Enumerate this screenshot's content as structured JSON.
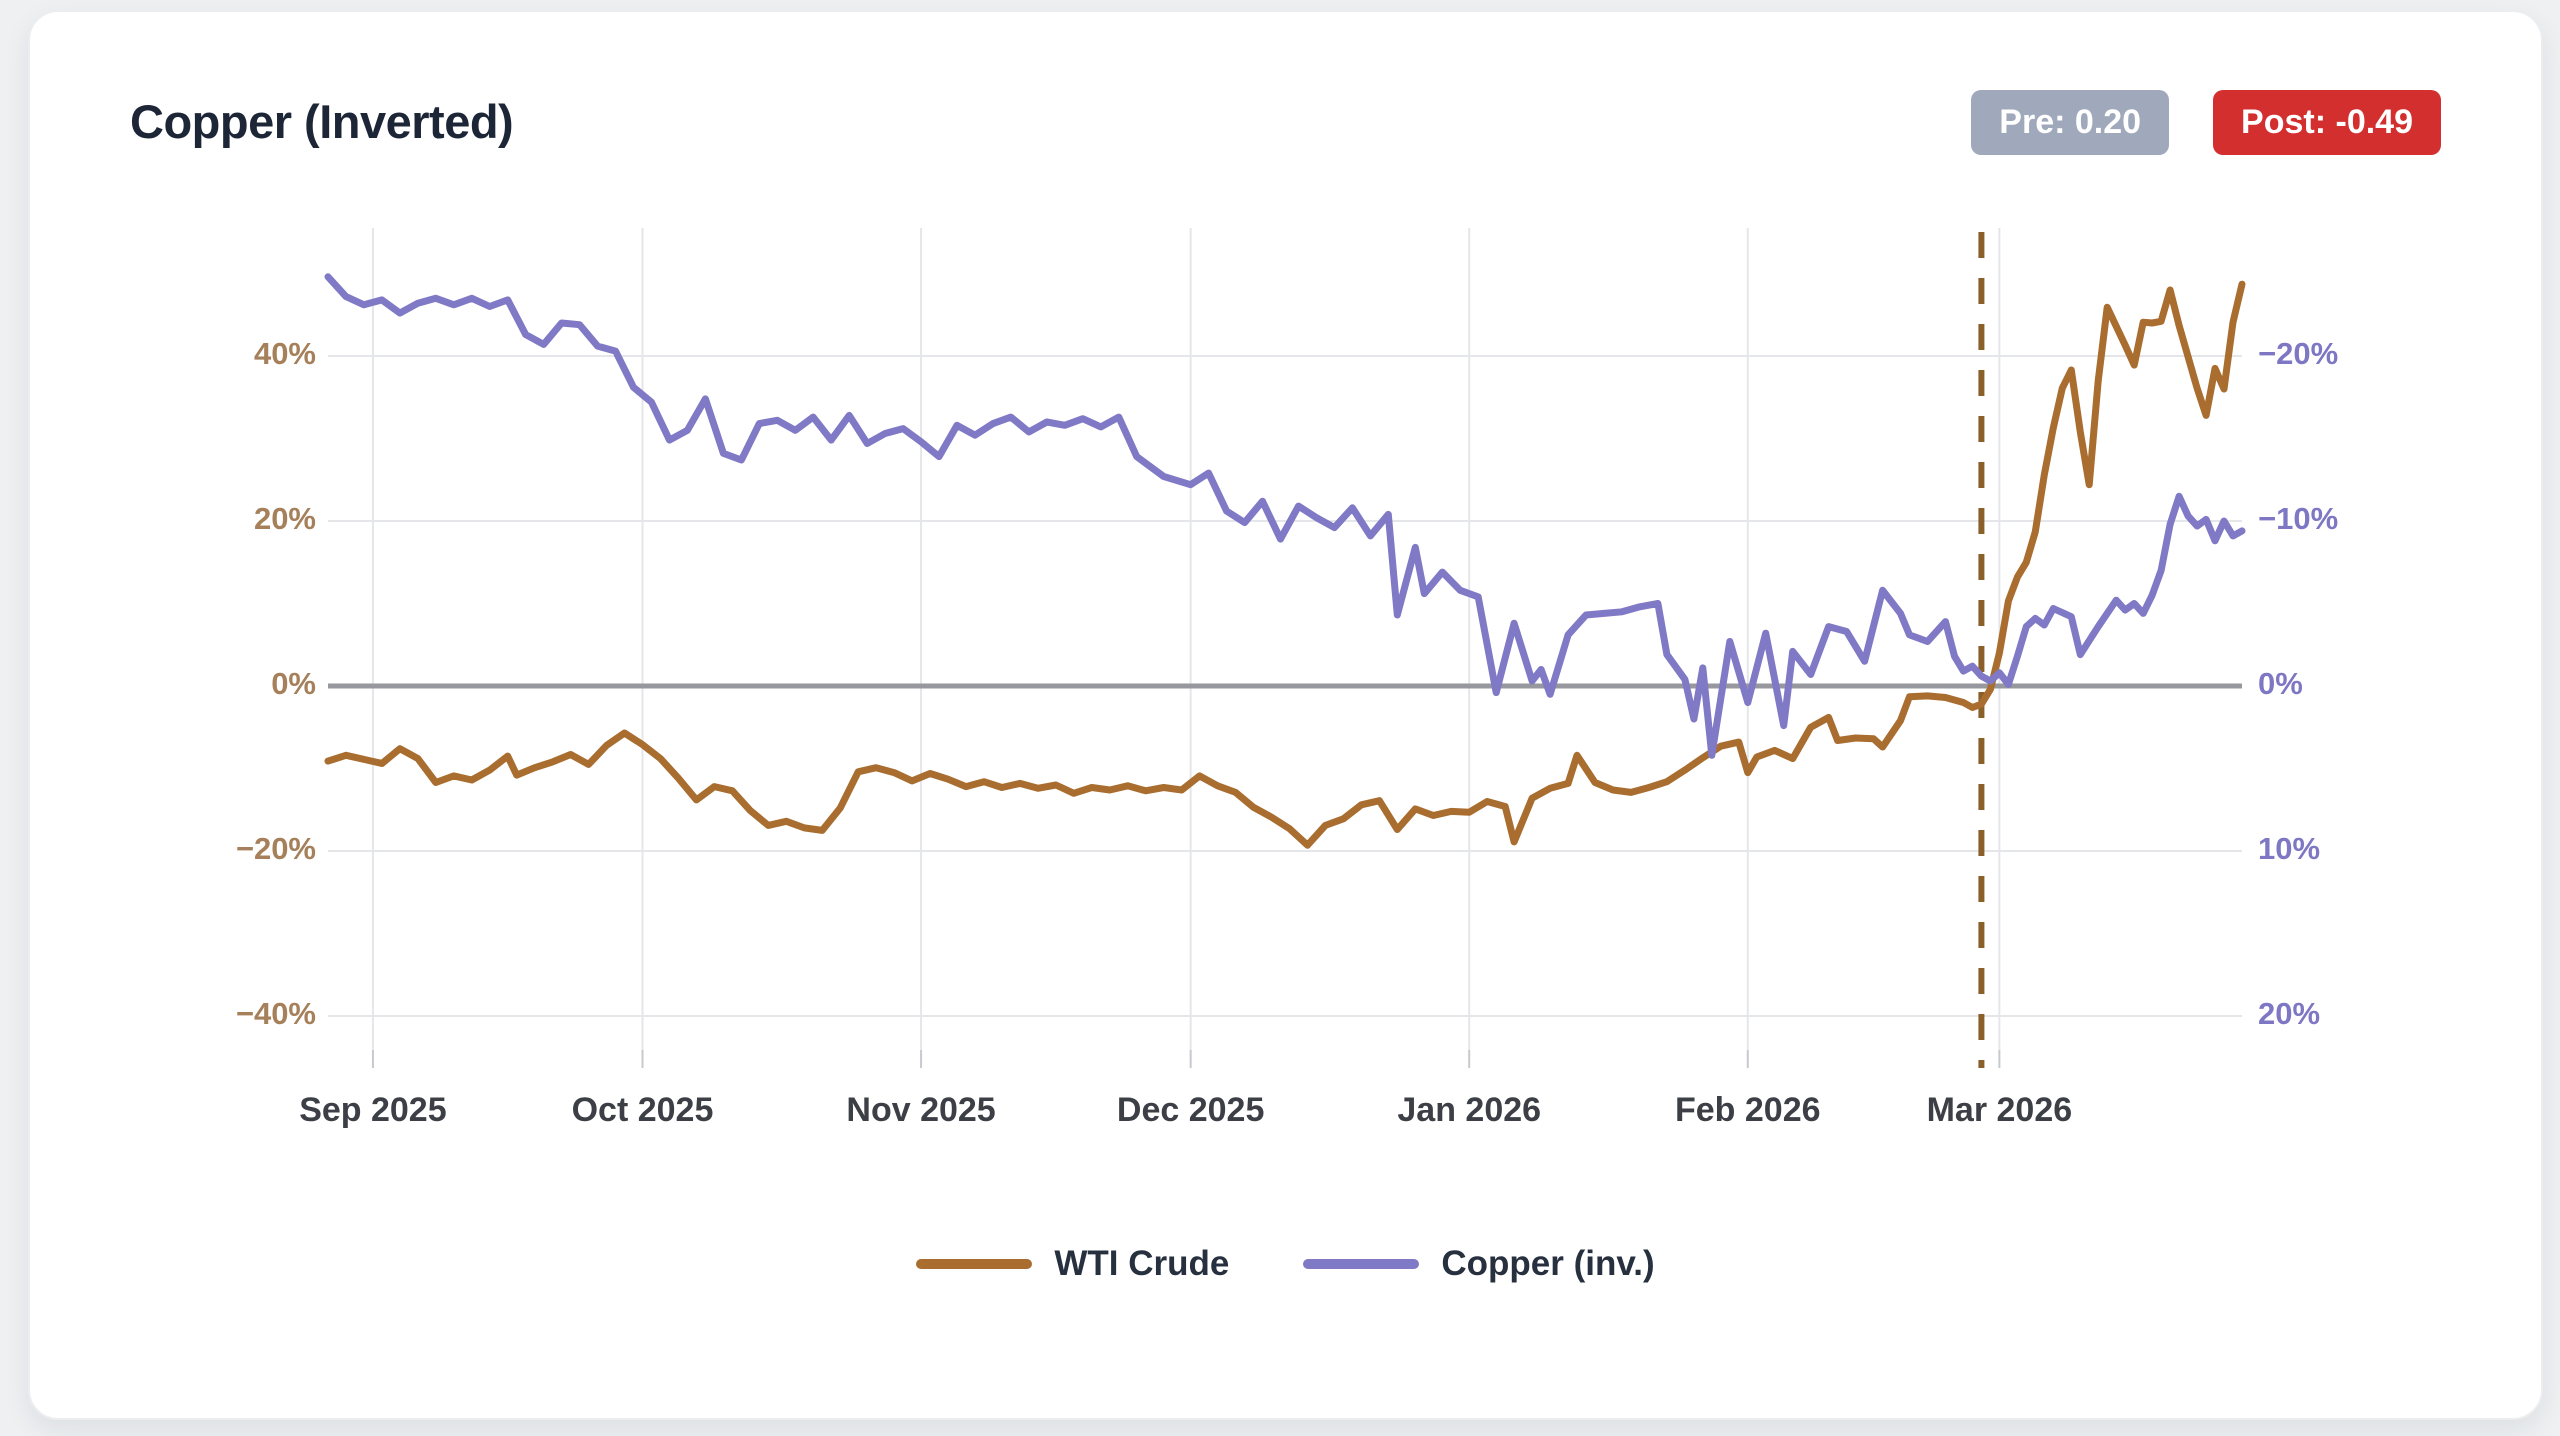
{
  "page": {
    "background": "#eef0f2"
  },
  "header": {
    "title": "Copper (Inverted)",
    "badges": [
      {
        "id": "pre",
        "label": "Pre: 0.20",
        "color": "#9fa9bb"
      },
      {
        "id": "post",
        "label": "Post: -0.49",
        "color": "#d42f2f"
      }
    ]
  },
  "legend": {
    "items": [
      {
        "label": "WTI Crude",
        "color": "#a86d2f"
      },
      {
        "label": "Copper (inv.)",
        "color": "#8079c5"
      }
    ]
  },
  "chart_data": {
    "type": "line",
    "title": "Copper (Inverted)",
    "grid": true,
    "legend_position": "bottom",
    "x_axis": {
      "type": "time",
      "start": "2025-08-27",
      "end": "2026-03-28",
      "tick_dates": [
        "2025-09-01",
        "2025-10-01",
        "2025-11-01",
        "2025-12-01",
        "2026-01-01",
        "2026-02-01",
        "2026-03-01"
      ],
      "tick_labels": [
        "Sep 2025",
        "Oct 2025",
        "Nov 2025",
        "Dec 2025",
        "Jan 2026",
        "Feb 2026",
        "Mar 2026"
      ],
      "label_color": "#3c4046"
    },
    "left_axis": {
      "title": "WTI Crude % change",
      "tick_values": [
        40,
        20,
        0,
        -20,
        -40
      ],
      "tick_labels": [
        "40%",
        "20%",
        "0%",
        "−20%",
        "−40%"
      ],
      "label_color": "#a5805a",
      "lim": [
        -44,
        55
      ]
    },
    "right_axis": {
      "title": "Copper % change (inverted)",
      "inverted": true,
      "tick_values": [
        -20,
        -10,
        0,
        10,
        20
      ],
      "tick_labels": [
        "−20%",
        "−10%",
        "0%",
        "10%",
        "20%"
      ],
      "label_color": "#7d77c4",
      "lim": [
        27.5,
        -22.2
      ]
    },
    "zero_line_color": "#97989d",
    "gridline_color": "#e5e6ea",
    "event_line": {
      "date": "2026-02-27",
      "style": "dashed",
      "color": "#8a5f2a"
    },
    "series": [
      {
        "name": "WTI Crude",
        "axis": "left",
        "color": "#a86d2f",
        "points": [
          [
            "2025-08-27",
            -9.1
          ],
          [
            "2025-08-29",
            -8.4
          ],
          [
            "2025-08-31",
            -8.9
          ],
          [
            "2025-09-02",
            -9.4
          ],
          [
            "2025-09-04",
            -7.6
          ],
          [
            "2025-09-06",
            -8.8
          ],
          [
            "2025-09-08",
            -11.7
          ],
          [
            "2025-09-10",
            -10.9
          ],
          [
            "2025-09-12",
            -11.4
          ],
          [
            "2025-09-14",
            -10.2
          ],
          [
            "2025-09-16",
            -8.5
          ],
          [
            "2025-09-17",
            -10.8
          ],
          [
            "2025-09-19",
            -9.9
          ],
          [
            "2025-09-21",
            -9.2
          ],
          [
            "2025-09-23",
            -8.3
          ],
          [
            "2025-09-25",
            -9.5
          ],
          [
            "2025-09-27",
            -7.2
          ],
          [
            "2025-09-29",
            -5.7
          ],
          [
            "2025-10-01",
            -7.1
          ],
          [
            "2025-10-03",
            -8.8
          ],
          [
            "2025-10-05",
            -11.2
          ],
          [
            "2025-10-07",
            -13.8
          ],
          [
            "2025-10-09",
            -12.2
          ],
          [
            "2025-10-11",
            -12.7
          ],
          [
            "2025-10-13",
            -15.1
          ],
          [
            "2025-10-15",
            -16.9
          ],
          [
            "2025-10-17",
            -16.4
          ],
          [
            "2025-10-19",
            -17.2
          ],
          [
            "2025-10-21",
            -17.5
          ],
          [
            "2025-10-23",
            -14.8
          ],
          [
            "2025-10-25",
            -10.4
          ],
          [
            "2025-10-27",
            -9.9
          ],
          [
            "2025-10-29",
            -10.5
          ],
          [
            "2025-10-31",
            -11.5
          ],
          [
            "2025-11-02",
            -10.6
          ],
          [
            "2025-11-04",
            -11.3
          ],
          [
            "2025-11-06",
            -12.2
          ],
          [
            "2025-11-08",
            -11.6
          ],
          [
            "2025-11-10",
            -12.3
          ],
          [
            "2025-11-12",
            -11.8
          ],
          [
            "2025-11-14",
            -12.4
          ],
          [
            "2025-11-16",
            -12.0
          ],
          [
            "2025-11-18",
            -13.0
          ],
          [
            "2025-11-20",
            -12.3
          ],
          [
            "2025-11-22",
            -12.6
          ],
          [
            "2025-11-24",
            -12.1
          ],
          [
            "2025-11-26",
            -12.7
          ],
          [
            "2025-11-28",
            -12.3
          ],
          [
            "2025-11-30",
            -12.6
          ],
          [
            "2025-12-02",
            -10.9
          ],
          [
            "2025-12-04",
            -12.1
          ],
          [
            "2025-12-06",
            -12.9
          ],
          [
            "2025-12-08",
            -14.7
          ],
          [
            "2025-12-10",
            -15.9
          ],
          [
            "2025-12-12",
            -17.3
          ],
          [
            "2025-12-14",
            -19.3
          ],
          [
            "2025-12-16",
            -16.9
          ],
          [
            "2025-12-18",
            -16.1
          ],
          [
            "2025-12-20",
            -14.4
          ],
          [
            "2025-12-22",
            -13.9
          ],
          [
            "2025-12-24",
            -17.4
          ],
          [
            "2025-12-26",
            -14.9
          ],
          [
            "2025-12-28",
            -15.7
          ],
          [
            "2025-12-30",
            -15.2
          ],
          [
            "2026-01-01",
            -15.3
          ],
          [
            "2026-01-03",
            -14.0
          ],
          [
            "2026-01-05",
            -14.6
          ],
          [
            "2026-01-06",
            -18.9
          ],
          [
            "2026-01-08",
            -13.6
          ],
          [
            "2026-01-10",
            -12.4
          ],
          [
            "2026-01-12",
            -11.8
          ],
          [
            "2026-01-13",
            -8.4
          ],
          [
            "2026-01-15",
            -11.7
          ],
          [
            "2026-01-17",
            -12.6
          ],
          [
            "2026-01-19",
            -12.9
          ],
          [
            "2026-01-21",
            -12.3
          ],
          [
            "2026-01-23",
            -11.6
          ],
          [
            "2026-01-25",
            -10.2
          ],
          [
            "2026-01-27",
            -8.7
          ],
          [
            "2026-01-29",
            -7.3
          ],
          [
            "2026-01-31",
            -6.8
          ],
          [
            "2026-02-01",
            -10.5
          ],
          [
            "2026-02-02",
            -8.6
          ],
          [
            "2026-02-04",
            -7.8
          ],
          [
            "2026-02-06",
            -8.8
          ],
          [
            "2026-02-08",
            -5.0
          ],
          [
            "2026-02-10",
            -3.8
          ],
          [
            "2026-02-11",
            -6.6
          ],
          [
            "2026-02-13",
            -6.3
          ],
          [
            "2026-02-15",
            -6.4
          ],
          [
            "2026-02-16",
            -7.4
          ],
          [
            "2026-02-18",
            -4.2
          ],
          [
            "2026-02-19",
            -1.3
          ],
          [
            "2026-02-21",
            -1.2
          ],
          [
            "2026-02-23",
            -1.4
          ],
          [
            "2026-02-25",
            -2.0
          ],
          [
            "2026-02-26",
            -2.6
          ],
          [
            "2026-02-27",
            -2.2
          ],
          [
            "2026-02-28",
            -0.4
          ],
          [
            "2026-03-01",
            4.0
          ],
          [
            "2026-03-02",
            10.3
          ],
          [
            "2026-03-03",
            13.2
          ],
          [
            "2026-03-04",
            15.0
          ],
          [
            "2026-03-05",
            18.7
          ],
          [
            "2026-03-06",
            25.6
          ],
          [
            "2026-03-07",
            31.3
          ],
          [
            "2026-03-08",
            36.1
          ],
          [
            "2026-03-09",
            38.3
          ],
          [
            "2026-03-10",
            30.8
          ],
          [
            "2026-03-11",
            24.4
          ],
          [
            "2026-03-12",
            37.0
          ],
          [
            "2026-03-13",
            45.9
          ],
          [
            "2026-03-15",
            41.3
          ],
          [
            "2026-03-16",
            38.9
          ],
          [
            "2026-03-17",
            44.1
          ],
          [
            "2026-03-18",
            44.0
          ],
          [
            "2026-03-19",
            44.2
          ],
          [
            "2026-03-20",
            48.0
          ],
          [
            "2026-03-21",
            43.7
          ],
          [
            "2026-03-23",
            36.1
          ],
          [
            "2026-03-24",
            32.8
          ],
          [
            "2026-03-25",
            38.5
          ],
          [
            "2026-03-26",
            36.0
          ],
          [
            "2026-03-27",
            44.1
          ],
          [
            "2026-03-28",
            48.7
          ]
        ]
      },
      {
        "name": "Copper (inv.)",
        "axis": "right",
        "color": "#8079c5",
        "points": [
          [
            "2025-08-27",
            -24.8
          ],
          [
            "2025-08-29",
            -23.6
          ],
          [
            "2025-08-31",
            -23.1
          ],
          [
            "2025-09-02",
            -23.4
          ],
          [
            "2025-09-04",
            -22.6
          ],
          [
            "2025-09-06",
            -23.2
          ],
          [
            "2025-09-08",
            -23.5
          ],
          [
            "2025-09-10",
            -23.1
          ],
          [
            "2025-09-12",
            -23.5
          ],
          [
            "2025-09-14",
            -23.0
          ],
          [
            "2025-09-16",
            -23.4
          ],
          [
            "2025-09-18",
            -21.3
          ],
          [
            "2025-09-20",
            -20.7
          ],
          [
            "2025-09-22",
            -22.0
          ],
          [
            "2025-09-24",
            -21.9
          ],
          [
            "2025-09-26",
            -20.6
          ],
          [
            "2025-09-28",
            -20.3
          ],
          [
            "2025-09-30",
            -18.1
          ],
          [
            "2025-10-02",
            -17.2
          ],
          [
            "2025-10-04",
            -14.9
          ],
          [
            "2025-10-06",
            -15.5
          ],
          [
            "2025-10-08",
            -17.4
          ],
          [
            "2025-10-10",
            -14.1
          ],
          [
            "2025-10-12",
            -13.7
          ],
          [
            "2025-10-14",
            -15.9
          ],
          [
            "2025-10-16",
            -16.1
          ],
          [
            "2025-10-18",
            -15.5
          ],
          [
            "2025-10-20",
            -16.3
          ],
          [
            "2025-10-22",
            -14.9
          ],
          [
            "2025-10-24",
            -16.4
          ],
          [
            "2025-10-26",
            -14.7
          ],
          [
            "2025-10-28",
            -15.3
          ],
          [
            "2025-10-30",
            -15.6
          ],
          [
            "2025-11-01",
            -14.8
          ],
          [
            "2025-11-03",
            -13.9
          ],
          [
            "2025-11-05",
            -15.8
          ],
          [
            "2025-11-07",
            -15.2
          ],
          [
            "2025-11-09",
            -15.9
          ],
          [
            "2025-11-11",
            -16.3
          ],
          [
            "2025-11-13",
            -15.4
          ],
          [
            "2025-11-15",
            -16.0
          ],
          [
            "2025-11-17",
            -15.8
          ],
          [
            "2025-11-19",
            -16.2
          ],
          [
            "2025-11-21",
            -15.7
          ],
          [
            "2025-11-23",
            -16.3
          ],
          [
            "2025-11-25",
            -13.9
          ],
          [
            "2025-11-28",
            -12.7
          ],
          [
            "2025-12-01",
            -12.2
          ],
          [
            "2025-12-03",
            -12.9
          ],
          [
            "2025-12-05",
            -10.6
          ],
          [
            "2025-12-07",
            -9.9
          ],
          [
            "2025-12-09",
            -11.2
          ],
          [
            "2025-12-11",
            -8.9
          ],
          [
            "2025-12-13",
            -10.9
          ],
          [
            "2025-12-15",
            -10.2
          ],
          [
            "2025-12-17",
            -9.6
          ],
          [
            "2025-12-19",
            -10.8
          ],
          [
            "2025-12-21",
            -9.1
          ],
          [
            "2025-12-23",
            -10.4
          ],
          [
            "2025-12-24",
            -4.3
          ],
          [
            "2025-12-26",
            -8.4
          ],
          [
            "2025-12-27",
            -5.6
          ],
          [
            "2025-12-29",
            -6.9
          ],
          [
            "2025-12-31",
            -5.8
          ],
          [
            "2026-01-02",
            -5.4
          ],
          [
            "2026-01-04",
            0.4
          ],
          [
            "2026-01-06",
            -3.8
          ],
          [
            "2026-01-08",
            -0.3
          ],
          [
            "2026-01-09",
            -1.0
          ],
          [
            "2026-01-10",
            0.5
          ],
          [
            "2026-01-12",
            -3.1
          ],
          [
            "2026-01-14",
            -4.3
          ],
          [
            "2026-01-16",
            -4.4
          ],
          [
            "2026-01-18",
            -4.5
          ],
          [
            "2026-01-20",
            -4.8
          ],
          [
            "2026-01-22",
            -5.0
          ],
          [
            "2026-01-23",
            -1.9
          ],
          [
            "2026-01-25",
            -0.4
          ],
          [
            "2026-01-26",
            2.0
          ],
          [
            "2026-01-27",
            -1.1
          ],
          [
            "2026-01-28",
            4.2
          ],
          [
            "2026-01-30",
            -2.7
          ],
          [
            "2026-02-01",
            1.0
          ],
          [
            "2026-02-03",
            -3.2
          ],
          [
            "2026-02-05",
            2.4
          ],
          [
            "2026-02-06",
            -2.1
          ],
          [
            "2026-02-08",
            -0.7
          ],
          [
            "2026-02-10",
            -3.6
          ],
          [
            "2026-02-12",
            -3.3
          ],
          [
            "2026-02-14",
            -1.5
          ],
          [
            "2026-02-16",
            -5.8
          ],
          [
            "2026-02-18",
            -4.4
          ],
          [
            "2026-02-19",
            -3.1
          ],
          [
            "2026-02-21",
            -2.7
          ],
          [
            "2026-02-23",
            -3.9
          ],
          [
            "2026-02-24",
            -1.8
          ],
          [
            "2026-02-25",
            -0.9
          ],
          [
            "2026-02-26",
            -1.2
          ],
          [
            "2026-02-27",
            -0.6
          ],
          [
            "2026-02-28",
            -0.3
          ],
          [
            "2026-03-01",
            -0.8
          ],
          [
            "2026-03-02",
            -0.1
          ],
          [
            "2026-03-03",
            -1.8
          ],
          [
            "2026-03-04",
            -3.6
          ],
          [
            "2026-03-05",
            -4.1
          ],
          [
            "2026-03-06",
            -3.7
          ],
          [
            "2026-03-07",
            -4.7
          ],
          [
            "2026-03-09",
            -4.2
          ],
          [
            "2026-03-10",
            -1.9
          ],
          [
            "2026-03-12",
            -3.6
          ],
          [
            "2026-03-14",
            -5.2
          ],
          [
            "2026-03-15",
            -4.6
          ],
          [
            "2026-03-16",
            -5.0
          ],
          [
            "2026-03-17",
            -4.4
          ],
          [
            "2026-03-18",
            -5.5
          ],
          [
            "2026-03-19",
            -7.0
          ],
          [
            "2026-03-20",
            -9.8
          ],
          [
            "2026-03-21",
            -11.5
          ],
          [
            "2026-03-22",
            -10.3
          ],
          [
            "2026-03-23",
            -9.7
          ],
          [
            "2026-03-24",
            -10.1
          ],
          [
            "2026-03-25",
            -8.8
          ],
          [
            "2026-03-26",
            -10.0
          ],
          [
            "2026-03-27",
            -9.1
          ],
          [
            "2026-03-28",
            -9.4
          ]
        ]
      }
    ]
  }
}
